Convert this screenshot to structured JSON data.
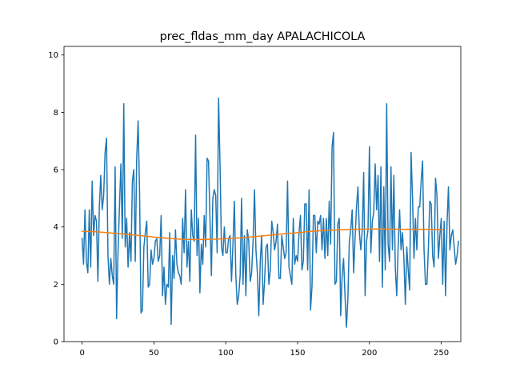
{
  "chart_data": {
    "type": "line",
    "title": "prec_fldas_mm_day APALACHICOLA",
    "xlabel": "",
    "ylabel": "",
    "xlim": [
      -12.6,
      263.6
    ],
    "ylim": [
      0,
      10.3
    ],
    "xticks": [
      0,
      50,
      100,
      150,
      200,
      250
    ],
    "yticks": [
      0,
      2,
      4,
      6,
      8,
      10
    ],
    "grid": false,
    "legend": "none",
    "series": [
      {
        "color": "#1f77b4",
        "values": [
          3.6,
          2.7,
          4.6,
          2.8,
          2.4,
          4.6,
          2.6,
          5.6,
          3.7,
          4.4,
          4.2,
          2.1,
          4.7,
          5.8,
          4.6,
          5.1,
          6.6,
          7.1,
          3.0,
          2.0,
          2.9,
          2.3,
          2.0,
          6.1,
          0.8,
          3.1,
          4.7,
          6.2,
          3.6,
          8.3,
          3.3,
          4.3,
          2.6,
          3.8,
          2.8,
          5.6,
          6.0,
          2.8,
          6.4,
          7.7,
          5.2,
          1.0,
          1.1,
          3.3,
          3.8,
          4.2,
          1.9,
          2.0,
          3.2,
          2.7,
          2.9,
          3.5,
          3.6,
          2.8,
          3.0,
          4.4,
          1.6,
          2.6,
          1.3,
          2.0,
          1.9,
          3.8,
          0.6,
          3.0,
          2.2,
          3.9,
          2.7,
          2.4,
          2.3,
          2.0,
          4.3,
          3.1,
          5.3,
          2.6,
          3.5,
          2.1,
          4.6,
          3.7,
          3.5,
          7.2,
          3.0,
          4.3,
          1.7,
          3.4,
          2.7,
          4.4,
          3.3,
          6.4,
          6.3,
          4.3,
          2.3,
          5.0,
          5.3,
          5.1,
          3.1,
          8.5,
          6.2,
          3.3,
          3.0,
          4.0,
          3.1,
          3.1,
          3.6,
          3.7,
          2.1,
          3.4,
          4.9,
          2.3,
          1.3,
          1.6,
          2.3,
          5.0,
          2.0,
          3.7,
          1.6,
          3.9,
          3.5,
          2.1,
          2.4,
          3.5,
          5.3,
          3.2,
          2.4,
          0.9,
          2.8,
          3.7,
          1.3,
          2.1,
          3.3,
          3.4,
          2.0,
          2.5,
          4.2,
          3.8,
          3.2,
          3.5,
          4.1,
          2.2,
          2.2,
          3.7,
          3.3,
          2.9,
          3.1,
          5.6,
          2.6,
          2.3,
          2.0,
          4.3,
          2.7,
          3.0,
          2.8,
          3.8,
          4.4,
          2.5,
          2.8,
          4.8,
          4.8,
          2.5,
          5.3,
          1.1,
          1.9,
          4.4,
          4.4,
          3.1,
          4.2,
          4.1,
          4.4,
          3.2,
          4.3,
          2.9,
          4.3,
          3.0,
          4.9,
          3.4,
          6.8,
          7.3,
          2.0,
          2.1,
          4.1,
          4.3,
          0.9,
          2.3,
          2.9,
          1.6,
          0.5,
          1.5,
          3.5,
          3.9,
          4.6,
          2.4,
          3.6,
          4.7,
          5.4,
          3.8,
          3.2,
          3.9,
          5.9,
          1.6,
          3.5,
          3.9,
          6.8,
          3.1,
          4.2,
          4.5,
          6.2,
          4.6,
          5.8,
          2.8,
          6.1,
          1.9,
          5.4,
          2.5,
          8.3,
          3.4,
          2.8,
          6.1,
          3.2,
          5.8,
          2.6,
          1.6,
          3.3,
          4.6,
          3.2,
          3.8,
          2.9,
          1.3,
          3.3,
          2.5,
          1.8,
          6.6,
          5.0,
          2.9,
          4.3,
          3.2,
          4.7,
          4.7,
          5.6,
          6.3,
          3.2,
          2.0,
          2.0,
          3.2,
          4.9,
          4.8,
          3.0,
          2.6,
          5.7,
          5.1,
          2.9,
          3.7,
          4.3,
          2.0,
          4.2,
          1.6,
          4.1,
          5.4,
          3.2,
          3.7,
          3.9,
          3.3,
          2.7,
          3.0,
          3.5
        ]
      },
      {
        "color": "#ff7f0e",
        "points": [
          [
            0,
            3.85
          ],
          [
            10,
            3.83
          ],
          [
            20,
            3.79
          ],
          [
            30,
            3.75
          ],
          [
            40,
            3.7
          ],
          [
            50,
            3.65
          ],
          [
            60,
            3.6
          ],
          [
            70,
            3.57
          ],
          [
            80,
            3.56
          ],
          [
            90,
            3.57
          ],
          [
            100,
            3.59
          ],
          [
            110,
            3.62
          ],
          [
            120,
            3.66
          ],
          [
            130,
            3.71
          ],
          [
            140,
            3.76
          ],
          [
            150,
            3.8
          ],
          [
            160,
            3.85
          ],
          [
            170,
            3.88
          ],
          [
            180,
            3.9
          ],
          [
            190,
            3.92
          ],
          [
            200,
            3.93
          ],
          [
            210,
            3.93
          ],
          [
            220,
            3.92
          ],
          [
            230,
            3.92
          ],
          [
            240,
            3.92
          ],
          [
            251,
            3.91
          ]
        ]
      }
    ]
  }
}
